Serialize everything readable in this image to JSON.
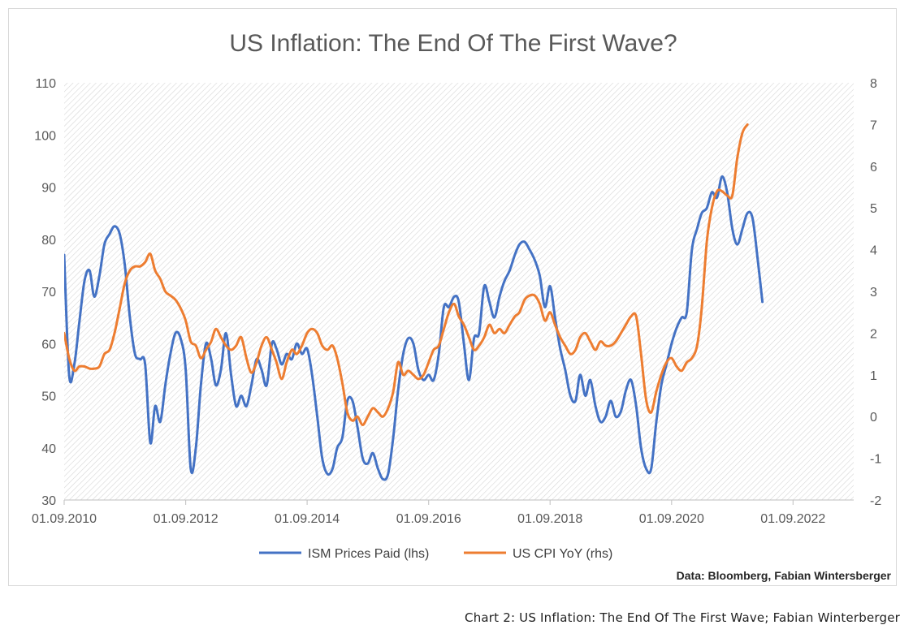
{
  "caption": "Chart 2: US Inflation: The End Of The First Wave; Fabian Winterberger",
  "chart_data": {
    "type": "line",
    "title": "US Inflation: The End Of The First Wave?",
    "source": "Data: Bloomberg, Fabian Wintersberger",
    "x_tick_labels": [
      "01.09.2010",
      "01.09.2012",
      "01.09.2014",
      "01.09.2016",
      "01.09.2018",
      "01.09.2020",
      "01.09.2022"
    ],
    "xlim": [
      "2010-09-01",
      "2023-09-01"
    ],
    "y_left": {
      "range": [
        30,
        110
      ],
      "ticks": [
        "30",
        "40",
        "50",
        "60",
        "70",
        "80",
        "90",
        "100",
        "110"
      ]
    },
    "y_right": {
      "range": [
        -2,
        8
      ],
      "ticks": [
        "-2",
        "-1",
        "0",
        "1",
        "2",
        "3",
        "4",
        "5",
        "6",
        "7",
        "8"
      ]
    },
    "legend_position": "bottom",
    "grid": "hatched background",
    "series": [
      {
        "name": "ISM Prices Paid (lhs)",
        "axis": "left",
        "color": "#4472C4",
        "points": [
          [
            "2010-09-01",
            77
          ],
          [
            "2010-10-01",
            54
          ],
          [
            "2010-11-01",
            56
          ],
          [
            "2010-12-01",
            64
          ],
          [
            "2011-01-01",
            72
          ],
          [
            "2011-02-01",
            74
          ],
          [
            "2011-03-01",
            69
          ],
          [
            "2011-04-01",
            73
          ],
          [
            "2011-05-01",
            79
          ],
          [
            "2011-06-01",
            81
          ],
          [
            "2011-07-01",
            82.5
          ],
          [
            "2011-08-01",
            81
          ],
          [
            "2011-09-01",
            75
          ],
          [
            "2011-10-01",
            65
          ],
          [
            "2011-11-01",
            58
          ],
          [
            "2011-12-01",
            57
          ],
          [
            "2012-01-01",
            56
          ],
          [
            "2012-02-01",
            41
          ],
          [
            "2012-03-01",
            48
          ],
          [
            "2012-04-01",
            45
          ],
          [
            "2012-05-01",
            52
          ],
          [
            "2012-06-01",
            58
          ],
          [
            "2012-07-01",
            62
          ],
          [
            "2012-08-01",
            61
          ],
          [
            "2012-09-01",
            55
          ],
          [
            "2012-10-01",
            36
          ],
          [
            "2012-11-01",
            40
          ],
          [
            "2012-12-01",
            52
          ],
          [
            "2013-01-01",
            60
          ],
          [
            "2013-02-01",
            57
          ],
          [
            "2013-03-01",
            52
          ],
          [
            "2013-04-01",
            55
          ],
          [
            "2013-05-01",
            62
          ],
          [
            "2013-06-01",
            54
          ],
          [
            "2013-07-01",
            48
          ],
          [
            "2013-08-01",
            50
          ],
          [
            "2013-09-01",
            48
          ],
          [
            "2013-10-01",
            52
          ],
          [
            "2013-11-01",
            57
          ],
          [
            "2013-12-01",
            55
          ],
          [
            "2014-01-01",
            52
          ],
          [
            "2014-02-01",
            60
          ],
          [
            "2014-03-01",
            59
          ],
          [
            "2014-04-01",
            56
          ],
          [
            "2014-05-01",
            58
          ],
          [
            "2014-06-01",
            57
          ],
          [
            "2014-07-01",
            60
          ],
          [
            "2014-08-01",
            58
          ],
          [
            "2014-09-01",
            59
          ],
          [
            "2014-10-01",
            54
          ],
          [
            "2014-11-01",
            46
          ],
          [
            "2014-12-01",
            38
          ],
          [
            "2015-01-01",
            35
          ],
          [
            "2015-02-01",
            36
          ],
          [
            "2015-03-01",
            40
          ],
          [
            "2015-04-01",
            42
          ],
          [
            "2015-05-01",
            49
          ],
          [
            "2015-06-01",
            49
          ],
          [
            "2015-07-01",
            44
          ],
          [
            "2015-08-01",
            38
          ],
          [
            "2015-09-01",
            37
          ],
          [
            "2015-10-01",
            39
          ],
          [
            "2015-11-01",
            36
          ],
          [
            "2015-12-01",
            34
          ],
          [
            "2016-01-01",
            35
          ],
          [
            "2016-02-01",
            42
          ],
          [
            "2016-03-01",
            51
          ],
          [
            "2016-04-01",
            58
          ],
          [
            "2016-05-01",
            61
          ],
          [
            "2016-06-01",
            60
          ],
          [
            "2016-07-01",
            55
          ],
          [
            "2016-08-01",
            53
          ],
          [
            "2016-09-01",
            54
          ],
          [
            "2016-10-01",
            53
          ],
          [
            "2016-11-01",
            58
          ],
          [
            "2016-12-01",
            67
          ],
          [
            "2017-01-01",
            67
          ],
          [
            "2017-02-01",
            69
          ],
          [
            "2017-03-01",
            68
          ],
          [
            "2017-04-01",
            60
          ],
          [
            "2017-05-01",
            53
          ],
          [
            "2017-06-01",
            61
          ],
          [
            "2017-07-01",
            62
          ],
          [
            "2017-08-01",
            71
          ],
          [
            "2017-09-01",
            68
          ],
          [
            "2017-10-01",
            65
          ],
          [
            "2017-11-01",
            69
          ],
          [
            "2017-12-01",
            72
          ],
          [
            "2018-01-01",
            74
          ],
          [
            "2018-02-01",
            77
          ],
          [
            "2018-03-01",
            79
          ],
          [
            "2018-04-01",
            79.5
          ],
          [
            "2018-05-01",
            78
          ],
          [
            "2018-06-01",
            76
          ],
          [
            "2018-07-01",
            73
          ],
          [
            "2018-08-01",
            67
          ],
          [
            "2018-09-01",
            71
          ],
          [
            "2018-10-01",
            65
          ],
          [
            "2018-11-01",
            59
          ],
          [
            "2018-12-01",
            55
          ],
          [
            "2019-01-01",
            50
          ],
          [
            "2019-02-01",
            49
          ],
          [
            "2019-03-01",
            54
          ],
          [
            "2019-04-01",
            50
          ],
          [
            "2019-05-01",
            53
          ],
          [
            "2019-06-01",
            48
          ],
          [
            "2019-07-01",
            45
          ],
          [
            "2019-08-01",
            46
          ],
          [
            "2019-09-01",
            49
          ],
          [
            "2019-10-01",
            46
          ],
          [
            "2019-11-01",
            47
          ],
          [
            "2019-12-01",
            51
          ],
          [
            "2020-01-01",
            53
          ],
          [
            "2020-02-01",
            48
          ],
          [
            "2020-03-01",
            40
          ],
          [
            "2020-04-01",
            36
          ],
          [
            "2020-05-01",
            36
          ],
          [
            "2020-06-01",
            45
          ],
          [
            "2020-07-01",
            52
          ],
          [
            "2020-08-01",
            56
          ],
          [
            "2020-09-01",
            60
          ],
          [
            "2020-10-01",
            63
          ],
          [
            "2020-11-01",
            65
          ],
          [
            "2020-12-01",
            66
          ],
          [
            "2021-01-01",
            78
          ],
          [
            "2021-02-01",
            82
          ],
          [
            "2021-03-01",
            85
          ],
          [
            "2021-04-01",
            86
          ],
          [
            "2021-05-01",
            89
          ],
          [
            "2021-06-01",
            88
          ],
          [
            "2021-07-01",
            92
          ],
          [
            "2021-08-01",
            89
          ],
          [
            "2021-09-01",
            82
          ],
          [
            "2021-10-01",
            79
          ],
          [
            "2021-11-01",
            82
          ],
          [
            "2021-12-01",
            85
          ],
          [
            "2022-01-01",
            84
          ],
          [
            "2022-02-01",
            76
          ],
          [
            "2022-03-01",
            68
          ]
        ]
      },
      {
        "name": "US CPI YoY (rhs)",
        "axis": "right",
        "color": "#ED7D31",
        "points": [
          [
            "2010-09-01",
            2.0
          ],
          [
            "2010-10-01",
            1.4
          ],
          [
            "2010-11-01",
            1.1
          ],
          [
            "2010-12-01",
            1.2
          ],
          [
            "2011-01-01",
            1.2
          ],
          [
            "2011-02-01",
            1.15
          ],
          [
            "2011-03-01",
            1.15
          ],
          [
            "2011-04-01",
            1.2
          ],
          [
            "2011-05-01",
            1.5
          ],
          [
            "2011-06-01",
            1.6
          ],
          [
            "2011-07-01",
            2.0
          ],
          [
            "2011-08-01",
            2.6
          ],
          [
            "2011-09-01",
            3.2
          ],
          [
            "2011-10-01",
            3.5
          ],
          [
            "2011-11-01",
            3.6
          ],
          [
            "2011-12-01",
            3.6
          ],
          [
            "2012-01-01",
            3.7
          ],
          [
            "2012-02-01",
            3.9
          ],
          [
            "2012-03-01",
            3.5
          ],
          [
            "2012-04-01",
            3.3
          ],
          [
            "2012-05-01",
            3.0
          ],
          [
            "2012-06-01",
            2.9
          ],
          [
            "2012-07-01",
            2.8
          ],
          [
            "2012-08-01",
            2.6
          ],
          [
            "2012-09-01",
            2.3
          ],
          [
            "2012-10-01",
            1.8
          ],
          [
            "2012-11-01",
            1.7
          ],
          [
            "2012-12-01",
            1.4
          ],
          [
            "2013-01-01",
            1.6
          ],
          [
            "2013-02-01",
            1.8
          ],
          [
            "2013-03-01",
            2.1
          ],
          [
            "2013-04-01",
            1.9
          ],
          [
            "2013-05-01",
            1.7
          ],
          [
            "2013-06-01",
            1.6
          ],
          [
            "2013-07-01",
            1.7
          ],
          [
            "2013-08-01",
            1.9
          ],
          [
            "2013-09-01",
            1.4
          ],
          [
            "2013-10-01",
            1.05
          ],
          [
            "2013-11-01",
            1.3
          ],
          [
            "2013-12-01",
            1.7
          ],
          [
            "2014-01-01",
            1.9
          ],
          [
            "2014-02-01",
            1.6
          ],
          [
            "2014-03-01",
            1.3
          ],
          [
            "2014-04-01",
            0.9
          ],
          [
            "2014-05-01",
            1.3
          ],
          [
            "2014-06-01",
            1.6
          ],
          [
            "2014-07-01",
            1.5
          ],
          [
            "2014-08-01",
            1.7
          ],
          [
            "2014-09-01",
            2.0
          ],
          [
            "2014-10-01",
            2.1
          ],
          [
            "2014-11-01",
            2.0
          ],
          [
            "2014-12-01",
            1.7
          ],
          [
            "2015-01-01",
            1.6
          ],
          [
            "2015-02-01",
            1.7
          ],
          [
            "2015-03-01",
            1.4
          ],
          [
            "2015-04-01",
            0.8
          ],
          [
            "2015-05-01",
            0.1
          ],
          [
            "2015-06-01",
            -0.1
          ],
          [
            "2015-07-01",
            0.0
          ],
          [
            "2015-08-01",
            -0.2
          ],
          [
            "2015-09-01",
            0.0
          ],
          [
            "2015-10-01",
            0.2
          ],
          [
            "2015-11-01",
            0.1
          ],
          [
            "2015-12-01",
            0.0
          ],
          [
            "2016-01-01",
            0.2
          ],
          [
            "2016-02-01",
            0.6
          ],
          [
            "2016-03-01",
            1.3
          ],
          [
            "2016-04-01",
            1.0
          ],
          [
            "2016-05-01",
            1.1
          ],
          [
            "2016-06-01",
            1.0
          ],
          [
            "2016-07-01",
            0.9
          ],
          [
            "2016-08-01",
            1.0
          ],
          [
            "2016-09-01",
            1.3
          ],
          [
            "2016-10-01",
            1.6
          ],
          [
            "2016-11-01",
            1.7
          ],
          [
            "2016-12-01",
            2.1
          ],
          [
            "2017-01-01",
            2.5
          ],
          [
            "2017-02-01",
            2.7
          ],
          [
            "2017-03-01",
            2.4
          ],
          [
            "2017-04-01",
            2.2
          ],
          [
            "2017-05-01",
            1.9
          ],
          [
            "2017-06-01",
            1.6
          ],
          [
            "2017-07-01",
            1.7
          ],
          [
            "2017-08-01",
            1.9
          ],
          [
            "2017-09-01",
            2.2
          ],
          [
            "2017-10-01",
            2.0
          ],
          [
            "2017-11-01",
            2.1
          ],
          [
            "2017-12-01",
            2.0
          ],
          [
            "2018-01-01",
            2.2
          ],
          [
            "2018-02-01",
            2.4
          ],
          [
            "2018-03-01",
            2.5
          ],
          [
            "2018-04-01",
            2.8
          ],
          [
            "2018-05-01",
            2.9
          ],
          [
            "2018-06-01",
            2.9
          ],
          [
            "2018-07-01",
            2.7
          ],
          [
            "2018-08-01",
            2.3
          ],
          [
            "2018-09-01",
            2.5
          ],
          [
            "2018-10-01",
            2.2
          ],
          [
            "2018-11-01",
            1.9
          ],
          [
            "2018-12-01",
            1.7
          ],
          [
            "2019-01-01",
            1.5
          ],
          [
            "2019-02-01",
            1.6
          ],
          [
            "2019-03-01",
            1.9
          ],
          [
            "2019-04-01",
            2.0
          ],
          [
            "2019-05-01",
            1.8
          ],
          [
            "2019-06-01",
            1.6
          ],
          [
            "2019-07-01",
            1.8
          ],
          [
            "2019-08-01",
            1.7
          ],
          [
            "2019-09-01",
            1.7
          ],
          [
            "2019-10-01",
            1.8
          ],
          [
            "2019-11-01",
            2.0
          ],
          [
            "2019-12-01",
            2.2
          ],
          [
            "2020-01-01",
            2.4
          ],
          [
            "2020-02-01",
            2.4
          ],
          [
            "2020-03-01",
            1.5
          ],
          [
            "2020-04-01",
            0.4
          ],
          [
            "2020-05-01",
            0.1
          ],
          [
            "2020-06-01",
            0.6
          ],
          [
            "2020-07-01",
            1.0
          ],
          [
            "2020-08-01",
            1.3
          ],
          [
            "2020-09-01",
            1.4
          ],
          [
            "2020-10-01",
            1.2
          ],
          [
            "2020-11-01",
            1.1
          ],
          [
            "2020-12-01",
            1.3
          ],
          [
            "2021-01-01",
            1.4
          ],
          [
            "2021-02-01",
            1.7
          ],
          [
            "2021-03-01",
            2.6
          ],
          [
            "2021-04-01",
            4.2
          ],
          [
            "2021-05-01",
            5.0
          ],
          [
            "2021-06-01",
            5.4
          ],
          [
            "2021-07-01",
            5.4
          ],
          [
            "2021-08-01",
            5.3
          ],
          [
            "2021-09-01",
            5.3
          ],
          [
            "2021-10-01",
            6.2
          ],
          [
            "2021-11-01",
            6.8
          ],
          [
            "2021-12-01",
            7.0
          ]
        ]
      }
    ]
  }
}
